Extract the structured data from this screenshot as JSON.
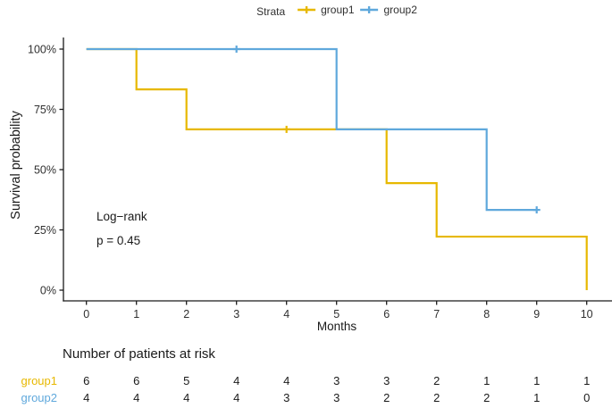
{
  "chart_data": {
    "type": "line",
    "subtype": "kaplan-meier-step",
    "title": "",
    "xlabel": "Months",
    "ylabel": "Survival probability",
    "xlim": [
      0,
      10
    ],
    "ylim": [
      0,
      100
    ],
    "xticks": [
      0,
      1,
      2,
      3,
      4,
      5,
      6,
      7,
      8,
      9,
      10
    ],
    "yticks": [
      0,
      25,
      50,
      75,
      100
    ],
    "ytick_suffix": "%",
    "grid": false,
    "legend": {
      "title": "Strata",
      "position": "top"
    },
    "annotation": {
      "line1": "Log−rank",
      "line2": "p = 0.45"
    },
    "colors": {
      "group1": "#E7B800",
      "group2": "#5FA8DC",
      "axis": "#1a1a1a"
    },
    "series": [
      {
        "name": "group1",
        "color": "#E7B800",
        "steps": [
          [
            0,
            100
          ],
          [
            1,
            83.3
          ],
          [
            2,
            66.7
          ],
          [
            6,
            44.4
          ],
          [
            7,
            22.2
          ],
          [
            10,
            0
          ]
        ],
        "end_time": 10,
        "censored": [
          [
            4,
            66.7
          ]
        ]
      },
      {
        "name": "group2",
        "color": "#5FA8DC",
        "steps": [
          [
            0,
            100
          ],
          [
            5,
            66.7
          ],
          [
            8,
            33.3
          ]
        ],
        "end_time": 9,
        "censored": [
          [
            3,
            100
          ],
          [
            9,
            33.3
          ]
        ]
      }
    ],
    "risk_table": {
      "title": "Number of patients at risk",
      "times": [
        0,
        1,
        2,
        3,
        4,
        5,
        6,
        7,
        8,
        9,
        10
      ],
      "rows": [
        {
          "name": "group1",
          "color": "#E7B800",
          "counts": [
            6,
            6,
            5,
            4,
            4,
            3,
            3,
            2,
            1,
            1,
            1
          ]
        },
        {
          "name": "group2",
          "color": "#5FA8DC",
          "counts": [
            4,
            4,
            4,
            4,
            3,
            3,
            2,
            2,
            2,
            1,
            0
          ]
        }
      ]
    }
  }
}
